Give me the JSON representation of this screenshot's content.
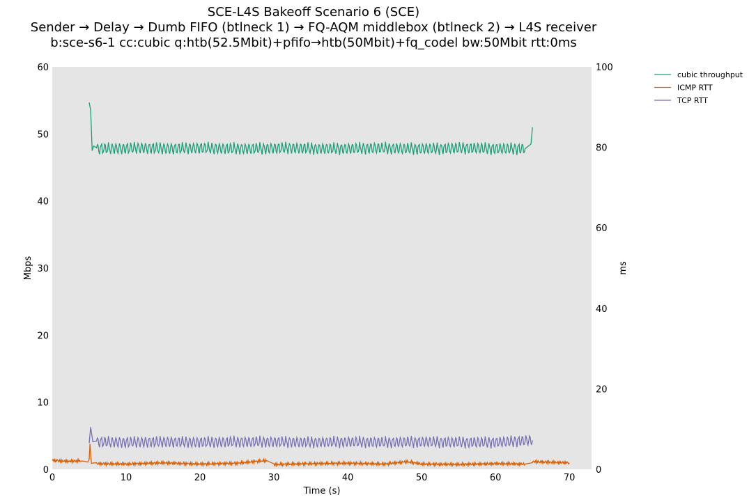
{
  "chart_data": {
    "type": "line",
    "title_lines": [
      "SCE-L4S Bakeoff Scenario 6 (SCE)",
      "Sender → Delay → Dumb FIFO (btlneck 1) → FQ-AQM middlebox (btlneck 2) → L4S receiver",
      "b:sce-s6-1 cc:cubic q:htb(52.5Mbit)+pfifo→htb(50Mbit)+fq_codel bw:50Mbit rtt:0ms"
    ],
    "xlabel": "Time (s)",
    "ylabel_left": "Mbps",
    "ylabel_right": "ms",
    "xlim": [
      0,
      73
    ],
    "ylim_left": [
      0,
      60
    ],
    "ylim_right": [
      0,
      100
    ],
    "xticks": [
      0,
      10,
      20,
      30,
      40,
      50,
      60,
      70
    ],
    "yticks_left": [
      0,
      10,
      20,
      30,
      40,
      50,
      60
    ],
    "yticks_right": [
      0,
      20,
      40,
      60,
      80,
      100
    ],
    "background": "#e5e5e5",
    "grid": false,
    "legend_position": "outside-top-right",
    "series": [
      {
        "name": "cubic throughput",
        "axis": "left",
        "color": "#1b9e77",
        "x": [
          5.0,
          5.2,
          5.4,
          5.6,
          6.0,
          8.0,
          12.0,
          16.0,
          20.0,
          24.0,
          28.0,
          32.0,
          36.0,
          40.0,
          44.0,
          48.0,
          52.0,
          56.0,
          60.0,
          64.0,
          64.8,
          65.0
        ],
        "y": [
          54.7,
          53.5,
          47.5,
          48.2,
          47.8,
          47.8,
          47.9,
          47.8,
          47.9,
          47.8,
          47.8,
          47.9,
          47.8,
          47.8,
          47.9,
          47.8,
          47.8,
          47.9,
          47.8,
          47.8,
          48.5,
          51.0
        ]
      },
      {
        "name": "ICMP RTT",
        "axis": "right",
        "color": "#d95f02",
        "x": [
          0,
          2,
          4,
          4.8,
          5.0,
          5.1,
          5.3,
          6,
          10,
          15,
          20,
          25,
          29,
          30,
          35,
          40,
          45,
          48,
          50,
          55,
          60,
          64,
          65,
          70
        ],
        "y": [
          2.2,
          2.0,
          2.1,
          1.8,
          2.5,
          6.3,
          1.5,
          1.4,
          1.3,
          1.6,
          1.3,
          1.5,
          2.2,
          1.2,
          1.4,
          1.5,
          1.3,
          1.9,
          1.3,
          1.2,
          1.4,
          1.3,
          1.9,
          1.6
        ]
      },
      {
        "name": "TCP RTT",
        "axis": "right",
        "color": "#7570b3",
        "x": [
          5.0,
          5.2,
          5.5,
          6.0,
          10,
          15,
          20,
          25,
          30,
          35,
          40,
          45,
          50,
          55,
          60,
          65
        ],
        "y": [
          6.5,
          10.5,
          6.8,
          6.8,
          6.7,
          6.8,
          6.7,
          6.8,
          6.8,
          6.7,
          6.8,
          6.7,
          6.8,
          6.7,
          6.7,
          7.2
        ]
      }
    ]
  }
}
